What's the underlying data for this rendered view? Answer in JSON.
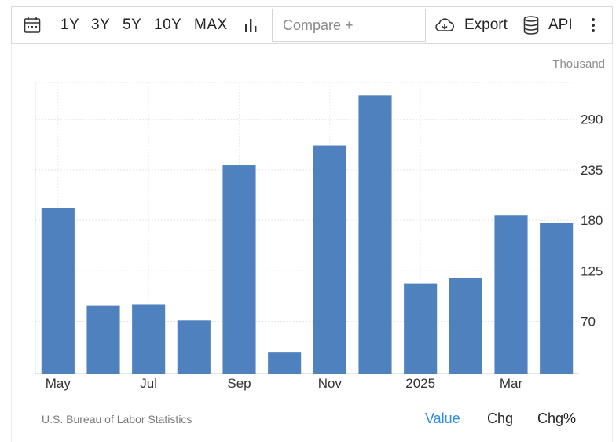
{
  "toolbar": {
    "ranges": [
      "1Y",
      "3Y",
      "5Y",
      "10Y",
      "MAX"
    ],
    "compare_placeholder": "Compare +",
    "export_label": "Export",
    "api_label": "API"
  },
  "chart_data": {
    "type": "bar",
    "unit": "Thousand",
    "categories": [
      "May 2024",
      "Jun 2024",
      "Jul 2024",
      "Aug 2024",
      "Sep 2024",
      "Oct 2024",
      "Nov 2024",
      "Dec 2024",
      "Jan 2025",
      "Feb 2025",
      "Mar 2025",
      "Apr 2025"
    ],
    "values": [
      193,
      87,
      88,
      71,
      240,
      36,
      261,
      316,
      111,
      117,
      185,
      177
    ],
    "x_tick_labels": [
      "May",
      "Jul",
      "Sep",
      "Nov",
      "2025",
      "Mar"
    ],
    "y_ticks": [
      70,
      125,
      180,
      235,
      290
    ],
    "ylim": [
      13,
      330
    ],
    "bar_color": "#4e81bd",
    "grid": true,
    "y_axis_side": "right"
  },
  "footer": {
    "source": "U.S. Bureau of Labor Statistics",
    "modes": [
      "Value",
      "Chg",
      "Chg%"
    ],
    "active_mode": "Value",
    "active_color": "#2b8ce0"
  }
}
